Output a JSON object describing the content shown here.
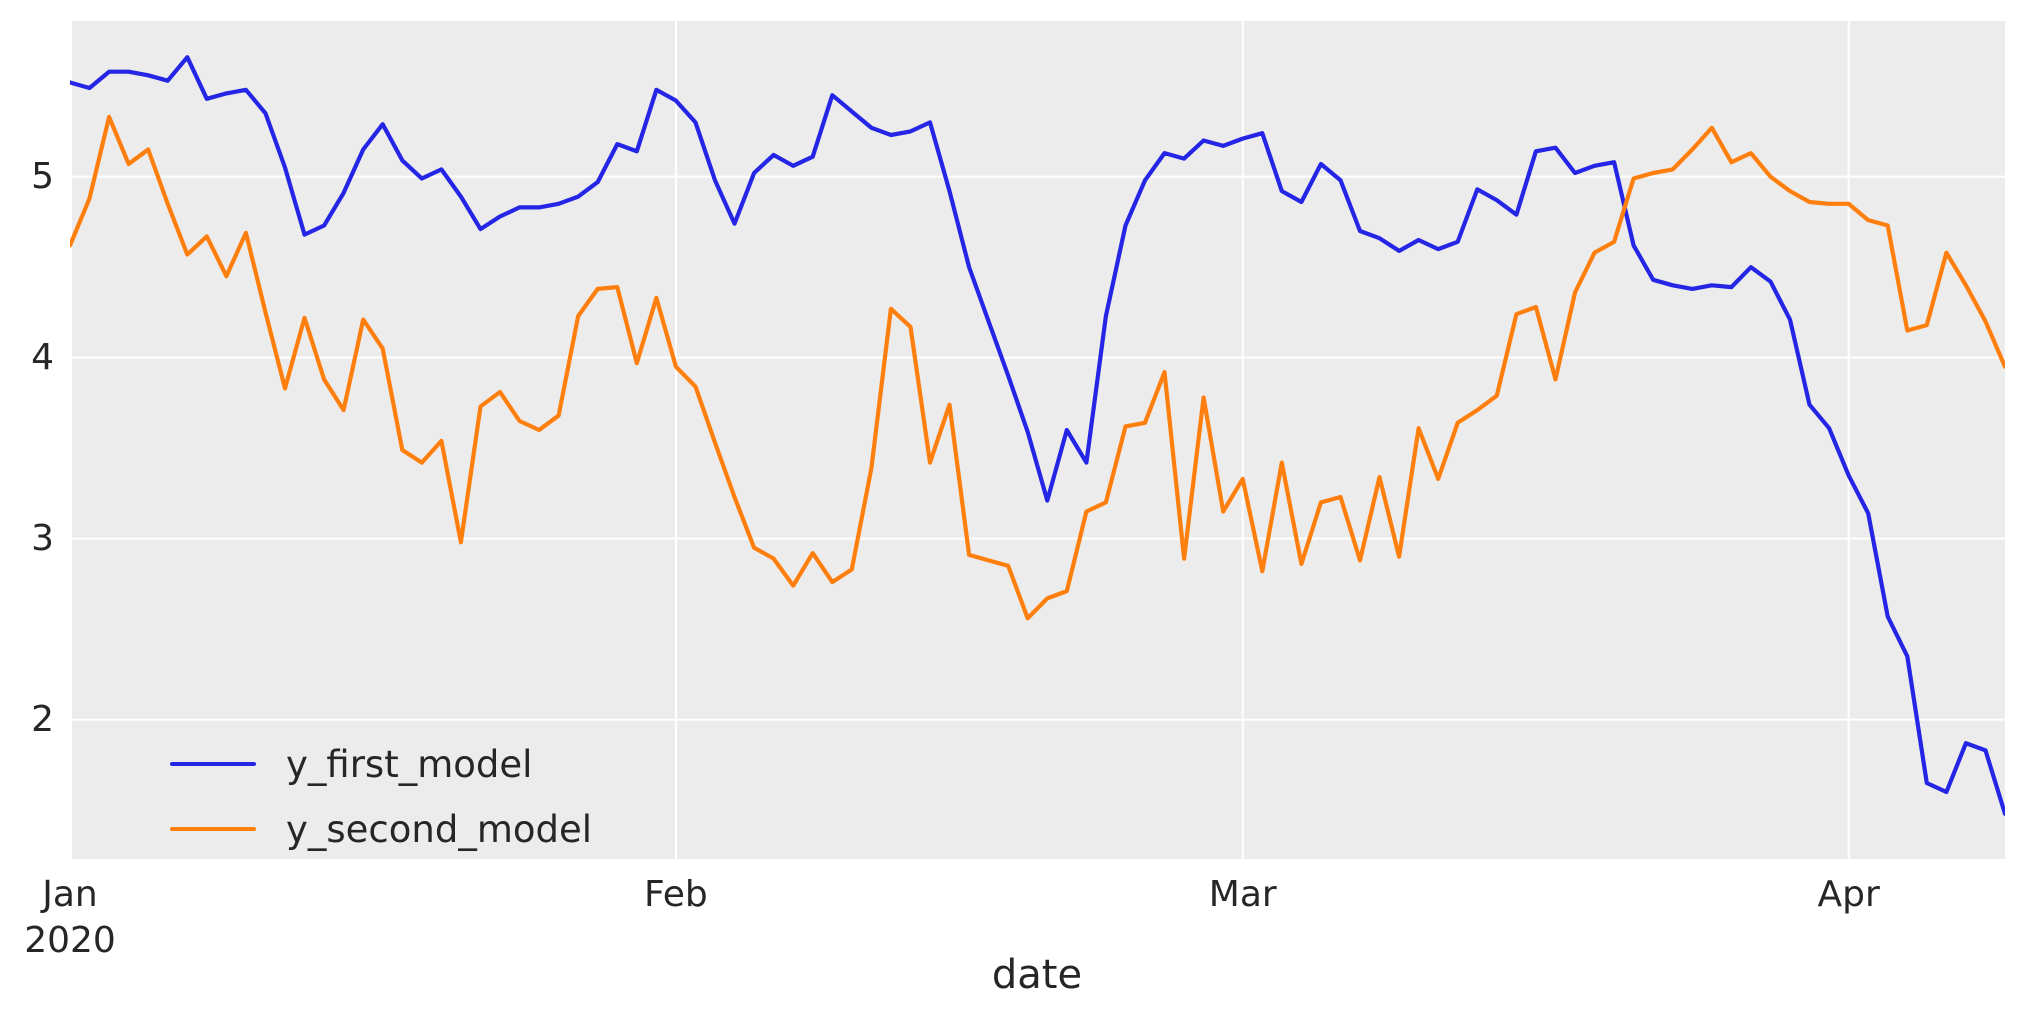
{
  "chart_data": {
    "type": "line",
    "title": "",
    "xlabel": "date",
    "ylabel": "",
    "x_start_date": "2020-01-01",
    "x_end_date": "2020-04-09",
    "x_frequency": "daily",
    "n_points": 100,
    "xlim_days": [
      0,
      99
    ],
    "ylim": [
      1.23,
      5.86
    ],
    "grid": true,
    "legend_position": "lower left",
    "colors": {
      "plot_background": "#ececec",
      "figure_background": "#ffffff",
      "gridline": "#ffffff",
      "text": "#262626"
    },
    "x_ticks": [
      {
        "day": 0,
        "label": "Jan\n2020"
      },
      {
        "day": 31,
        "label": "Feb"
      },
      {
        "day": 60,
        "label": "Mar"
      },
      {
        "day": 91,
        "label": "Apr"
      }
    ],
    "y_ticks": [
      2,
      3,
      4,
      5
    ],
    "series": [
      {
        "name": "y_first_model",
        "color": "#2525e6",
        "values": [
          5.52,
          5.49,
          5.58,
          5.58,
          5.56,
          5.53,
          5.66,
          5.43,
          5.46,
          5.48,
          5.35,
          5.05,
          4.68,
          4.73,
          4.91,
          5.15,
          5.29,
          5.09,
          4.99,
          5.04,
          4.89,
          4.71,
          4.78,
          4.83,
          4.83,
          4.85,
          4.89,
          4.97,
          5.18,
          5.14,
          5.48,
          5.42,
          5.3,
          4.98,
          4.74,
          5.02,
          5.12,
          5.06,
          5.11,
          5.45,
          5.36,
          5.27,
          5.23,
          5.25,
          5.3,
          4.92,
          4.5,
          4.2,
          3.9,
          3.59,
          3.21,
          3.6,
          3.42,
          4.23,
          4.73,
          4.98,
          5.13,
          5.1,
          5.2,
          5.17,
          5.21,
          5.24,
          4.92,
          4.86,
          5.07,
          4.98,
          4.7,
          4.66,
          4.59,
          4.65,
          4.6,
          4.64,
          4.93,
          4.87,
          4.79,
          5.14,
          5.16,
          5.02,
          5.06,
          5.08,
          4.62,
          4.43,
          4.4,
          4.38,
          4.4,
          4.39,
          4.5,
          4.42,
          4.21,
          3.74,
          3.61,
          3.35,
          3.14,
          2.57,
          2.35,
          1.65,
          1.6,
          1.87,
          1.83,
          1.48
        ]
      },
      {
        "name": "y_second_model",
        "color": "#ff7f0e",
        "values": [
          4.62,
          4.88,
          5.33,
          5.07,
          5.15,
          4.85,
          4.57,
          4.67,
          4.45,
          4.69,
          4.25,
          3.83,
          4.22,
          3.88,
          3.71,
          4.21,
          4.05,
          3.49,
          3.42,
          3.54,
          2.98,
          3.73,
          3.81,
          3.65,
          3.6,
          3.68,
          4.23,
          4.38,
          4.39,
          3.97,
          4.33,
          3.95,
          3.84,
          3.53,
          3.23,
          2.95,
          2.89,
          2.74,
          2.92,
          2.76,
          2.83,
          3.39,
          4.27,
          4.17,
          3.42,
          3.74,
          2.91,
          2.88,
          2.85,
          2.56,
          2.67,
          2.71,
          3.15,
          3.2,
          3.62,
          3.64,
          3.92,
          2.89,
          3.78,
          3.15,
          3.33,
          2.82,
          3.42,
          2.86,
          3.2,
          3.23,
          2.88,
          3.34,
          2.9,
          3.61,
          3.33,
          3.64,
          3.71,
          3.79,
          4.24,
          4.28,
          3.88,
          4.36,
          4.58,
          4.64,
          4.99,
          5.02,
          5.04,
          5.15,
          5.27,
          5.08,
          5.13,
          5.0,
          4.92,
          4.86,
          4.85,
          4.85,
          4.76,
          4.73,
          4.15,
          4.18,
          4.58,
          4.4,
          4.2,
          3.95
        ]
      }
    ]
  }
}
